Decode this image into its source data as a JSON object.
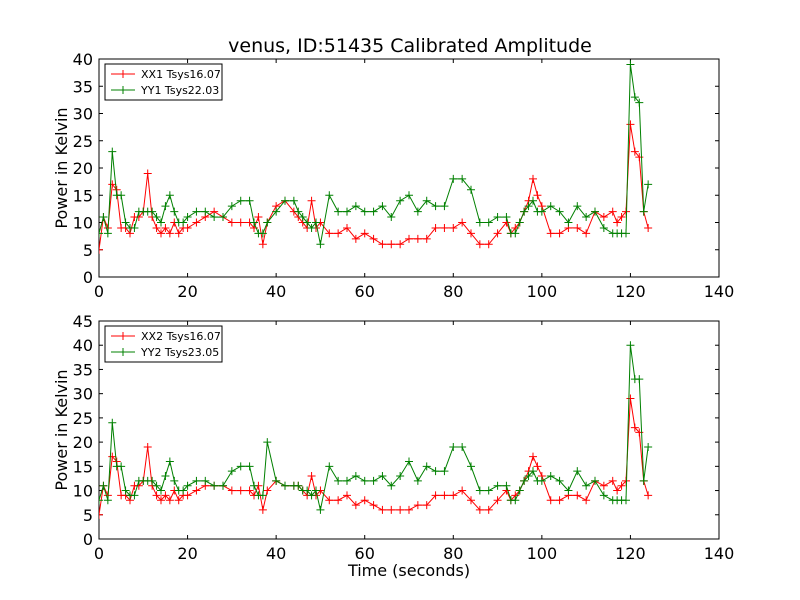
{
  "title": "venus, ID:51435 Calibrated Amplitude",
  "colors": {
    "red": "#ff0000",
    "green": "#008000"
  },
  "chart_data": [
    {
      "type": "line",
      "title": "venus, ID:51435 Calibrated Amplitude",
      "xlabel": "",
      "ylabel": "Power in Kelvin",
      "xlim": [
        0,
        140
      ],
      "ylim": [
        0,
        40
      ],
      "xticks": [
        "0",
        "20",
        "40",
        "60",
        "80",
        "100",
        "120",
        "140"
      ],
      "yticks": [
        "0",
        "5",
        "10",
        "15",
        "20",
        "25",
        "30",
        "35",
        "40"
      ],
      "legend_position": "top-left",
      "grid": false,
      "series": [
        {
          "name": "XX1 Tsys16.07",
          "color": "#ff0000",
          "x": [
            0,
            1,
            2,
            3,
            4,
            5,
            6,
            7,
            8,
            9,
            10,
            11,
            12,
            13,
            14,
            15,
            16,
            17,
            18,
            19,
            20,
            22,
            24,
            26,
            28,
            30,
            32,
            34,
            35,
            36,
            37,
            38,
            40,
            42,
            44,
            45,
            46,
            47,
            48,
            49,
            50,
            52,
            54,
            56,
            58,
            60,
            62,
            64,
            66,
            68,
            70,
            72,
            74,
            76,
            78,
            80,
            82,
            84,
            86,
            88,
            90,
            92,
            93,
            94,
            95,
            96,
            97,
            98,
            99,
            100,
            102,
            104,
            106,
            108,
            110,
            112,
            114,
            116,
            117,
            118,
            119,
            120,
            121,
            122,
            123,
            124
          ],
          "y": [
            5,
            11,
            9,
            17,
            16,
            9,
            9,
            8,
            11,
            11,
            12,
            19,
            11,
            9,
            8,
            9,
            8,
            10,
            8,
            9,
            9,
            10,
            11,
            12,
            11,
            10,
            10,
            10,
            9,
            11,
            6,
            10,
            13,
            14,
            12,
            11,
            10,
            9,
            14,
            9,
            10,
            8,
            8,
            9,
            7,
            8,
            7,
            6,
            6,
            6,
            7,
            7,
            7,
            9,
            9,
            9,
            10,
            8,
            6,
            6,
            8,
            10,
            8,
            9,
            10,
            12,
            14,
            18,
            15,
            13,
            8,
            8,
            9,
            9,
            8,
            12,
            11,
            12,
            10,
            11,
            12,
            28,
            23,
            22,
            12,
            9
          ]
        },
        {
          "name": "YY1 Tsys22.03",
          "color": "#008000",
          "x": [
            0,
            1,
            2,
            3,
            4,
            5,
            6,
            7,
            8,
            9,
            10,
            11,
            12,
            13,
            14,
            15,
            16,
            17,
            18,
            19,
            20,
            22,
            24,
            26,
            28,
            30,
            32,
            34,
            35,
            36,
            37,
            38,
            40,
            42,
            44,
            45,
            46,
            47,
            48,
            49,
            50,
            52,
            54,
            56,
            58,
            60,
            62,
            64,
            66,
            68,
            70,
            72,
            74,
            76,
            78,
            80,
            82,
            84,
            86,
            88,
            90,
            92,
            93,
            94,
            95,
            96,
            97,
            98,
            99,
            100,
            102,
            104,
            106,
            108,
            110,
            112,
            114,
            116,
            117,
            118,
            119,
            120,
            121,
            122,
            123,
            124
          ],
          "y": [
            8,
            11,
            8,
            23,
            15,
            15,
            10,
            9,
            9,
            12,
            12,
            12,
            12,
            11,
            10,
            13,
            15,
            12,
            10,
            10,
            11,
            12,
            12,
            11,
            11,
            13,
            14,
            14,
            10,
            8,
            8,
            10,
            12,
            14,
            14,
            12,
            11,
            10,
            9,
            10,
            6,
            15,
            12,
            12,
            13,
            12,
            12,
            13,
            11,
            14,
            15,
            12,
            14,
            13,
            13,
            18,
            18,
            16,
            10,
            10,
            11,
            11,
            8,
            8,
            10,
            12,
            13,
            14,
            12,
            12,
            13,
            12,
            10,
            13,
            11,
            12,
            9,
            8,
            8,
            8,
            8,
            39,
            33,
            32,
            12,
            17
          ]
        }
      ]
    },
    {
      "type": "line",
      "title": "",
      "xlabel": "Time (seconds)",
      "ylabel": "Power in Kelvin",
      "xlim": [
        0,
        140
      ],
      "ylim": [
        0,
        45
      ],
      "xticks": [
        "0",
        "20",
        "40",
        "60",
        "80",
        "100",
        "120",
        "140"
      ],
      "yticks": [
        "0",
        "5",
        "10",
        "15",
        "20",
        "25",
        "30",
        "35",
        "40",
        "45"
      ],
      "legend_position": "top-left",
      "grid": false,
      "series": [
        {
          "name": "XX2 Tsys16.07",
          "color": "#ff0000",
          "x": [
            0,
            1,
            2,
            3,
            4,
            5,
            6,
            7,
            8,
            9,
            10,
            11,
            12,
            13,
            14,
            15,
            16,
            17,
            18,
            19,
            20,
            22,
            24,
            26,
            28,
            30,
            32,
            34,
            35,
            36,
            37,
            38,
            40,
            42,
            44,
            45,
            46,
            47,
            48,
            49,
            50,
            52,
            54,
            56,
            58,
            60,
            62,
            64,
            66,
            68,
            70,
            72,
            74,
            76,
            78,
            80,
            82,
            84,
            86,
            88,
            90,
            92,
            93,
            94,
            95,
            96,
            97,
            98,
            99,
            100,
            102,
            104,
            106,
            108,
            110,
            112,
            114,
            116,
            117,
            118,
            119,
            120,
            121,
            122,
            123,
            124
          ],
          "y": [
            5,
            11,
            9,
            17,
            16,
            9,
            9,
            8,
            11,
            11,
            12,
            19,
            11,
            9,
            8,
            9,
            8,
            10,
            8,
            9,
            9,
            10,
            11,
            11,
            11,
            10,
            10,
            10,
            9,
            11,
            6,
            10,
            12,
            11,
            11,
            11,
            10,
            9,
            13,
            9,
            10,
            8,
            8,
            9,
            7,
            8,
            7,
            6,
            6,
            6,
            6,
            7,
            7,
            9,
            9,
            9,
            10,
            8,
            6,
            6,
            8,
            10,
            8,
            9,
            10,
            12,
            14,
            17,
            15,
            13,
            8,
            8,
            9,
            9,
            8,
            12,
            11,
            12,
            10,
            11,
            12,
            29,
            23,
            22,
            12,
            9
          ]
        },
        {
          "name": "YY2 Tsys23.05",
          "color": "#008000",
          "x": [
            0,
            1,
            2,
            3,
            4,
            5,
            6,
            7,
            8,
            9,
            10,
            11,
            12,
            13,
            14,
            15,
            16,
            17,
            18,
            19,
            20,
            22,
            24,
            26,
            28,
            30,
            32,
            34,
            35,
            36,
            37,
            38,
            40,
            42,
            44,
            45,
            46,
            47,
            48,
            49,
            50,
            52,
            54,
            56,
            58,
            60,
            62,
            64,
            66,
            68,
            70,
            72,
            74,
            76,
            78,
            80,
            82,
            84,
            86,
            88,
            90,
            92,
            93,
            94,
            95,
            96,
            97,
            98,
            99,
            100,
            102,
            104,
            106,
            108,
            110,
            112,
            114,
            116,
            117,
            118,
            119,
            120,
            121,
            122,
            123,
            124
          ],
          "y": [
            8,
            11,
            8,
            24,
            15,
            15,
            10,
            9,
            9,
            12,
            12,
            12,
            12,
            11,
            10,
            13,
            16,
            12,
            10,
            10,
            11,
            12,
            12,
            11,
            11,
            14,
            15,
            15,
            11,
            9,
            9,
            20,
            12,
            11,
            11,
            11,
            10,
            10,
            9,
            10,
            6,
            15,
            12,
            12,
            13,
            12,
            12,
            13,
            11,
            13,
            16,
            12,
            15,
            14,
            14,
            19,
            19,
            15,
            10,
            10,
            11,
            11,
            8,
            8,
            10,
            12,
            13,
            14,
            12,
            12,
            13,
            12,
            10,
            14,
            11,
            12,
            9,
            8,
            8,
            8,
            8,
            40,
            33,
            33,
            12,
            19
          ]
        }
      ]
    }
  ]
}
